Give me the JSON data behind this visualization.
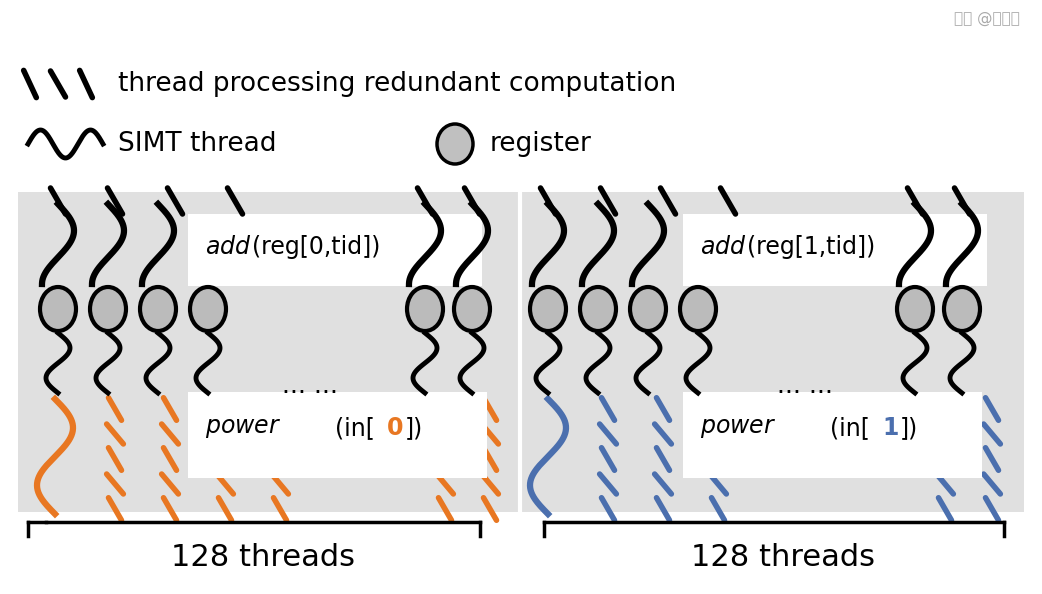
{
  "bg_color": "#e0e0e0",
  "white": "#ffffff",
  "orange_color": "#E87722",
  "blue_color": "#4B6FAE",
  "black_color": "#111111",
  "bracket_label_left": "128 threads",
  "bracket_label_right": "128 threads",
  "dots": "... ...",
  "legend_simt": "SIMT thread",
  "legend_register": "register",
  "legend_redundant": "thread processing redundant computation",
  "watermark": "知乎 @朱乐乐",
  "orange_idx": "0",
  "blue_idx": "1"
}
